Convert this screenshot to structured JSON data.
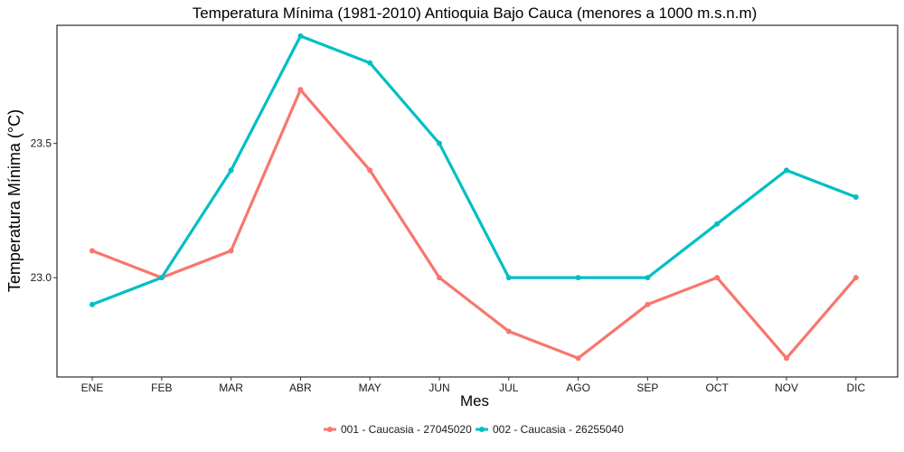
{
  "chart_data": {
    "type": "line",
    "title": "Temperatura Mínima (1981-2010) Antioquia Bajo Cauca (menores a 1000 m.s.n.m)",
    "xlabel": "Mes",
    "ylabel": "Temperatura Mínima (°C)",
    "categories": [
      "ENE",
      "FEB",
      "MAR",
      "ABR",
      "MAY",
      "JUN",
      "JUL",
      "AGO",
      "SEP",
      "OCT",
      "NOV",
      "DIC"
    ],
    "series": [
      {
        "name": "001 - Caucasia - 27045020",
        "color": "#F8766D",
        "values": [
          23.1,
          23.0,
          23.1,
          23.7,
          23.4,
          23.0,
          22.8,
          22.7,
          22.9,
          23.0,
          22.7,
          23.0
        ]
      },
      {
        "name": "002 - Caucasia - 26255040",
        "color": "#00BFC4",
        "values": [
          22.9,
          23.0,
          23.4,
          23.9,
          23.8,
          23.5,
          23.0,
          23.0,
          23.0,
          23.2,
          23.4,
          23.3
        ]
      }
    ],
    "yticks": [
      23.0,
      23.5
    ],
    "ytick_labels": [
      "23.0",
      "23.5"
    ],
    "ylim": [
      22.63,
      23.94
    ],
    "grid": false,
    "legend_position": "bottom"
  }
}
